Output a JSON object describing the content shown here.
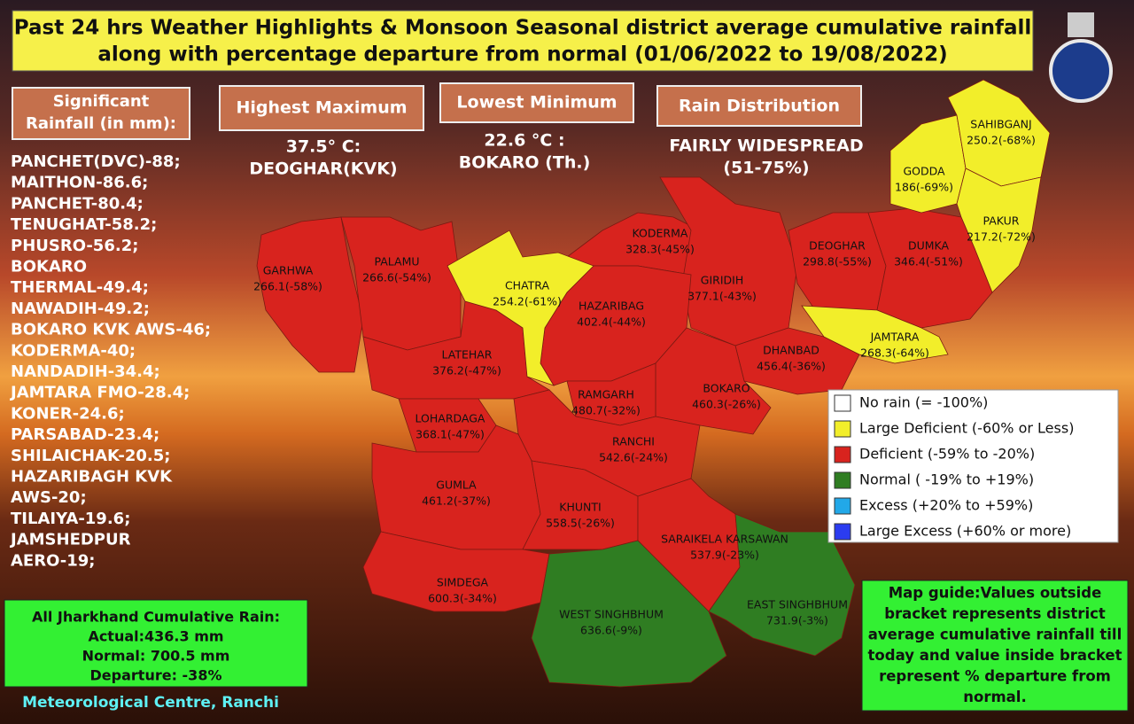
{
  "header": {
    "title_lines": [
      "Past 24 hrs Weather Highlights & Monsoon Seasonal district average cumulative rainfall",
      "along with percentage departure from normal (01/06/2022 to 19/08/2022)"
    ]
  },
  "significant_rainfall": {
    "heading_lines": [
      "Significant",
      "Rainfall (in mm):"
    ],
    "lines": [
      "PANCHET(DVC)-88;",
      "MAITHON-86.6;",
      "PANCHET-80.4;",
      "TENUGHAT-58.2;",
      "PHUSRO-56.2;",
      "BOKARO",
      "THERMAL-49.4;",
      "NAWADIH-49.2;",
      "BOKARO KVK AWS-46;",
      "KODERMA-40;",
      "NANDADIH-34.4;",
      "JAMTARA FMO-28.4;",
      "KONER-24.6;",
      "PARSABAD-23.4;",
      "SHILAICHAK-20.5;",
      "HAZARIBAGH KVK",
      "AWS-20;",
      "TILAIYA-19.6;",
      "JAMSHEDPUR",
      "AERO-19;"
    ]
  },
  "highest_maximum": {
    "heading": "Highest Maximum",
    "lines": [
      "37.5° C:",
      "DEOGHAR(KVK)"
    ]
  },
  "lowest_minimum": {
    "heading": "Lowest Minimum",
    "lines": [
      "22.6 °C :",
      "BOKARO (Th.)"
    ]
  },
  "rain_distribution": {
    "heading": "Rain Distribution",
    "lines": [
      "FAIRLY WIDESPREAD",
      "(51-75%)"
    ]
  },
  "legend": {
    "items": [
      {
        "label": "No rain (= -100%)",
        "color": "#ffffff"
      },
      {
        "label": "Large Deficient (-60% or Less)",
        "color": "#f2ee2a"
      },
      {
        "label": "Deficient (-59% to -20%)",
        "color": "#d8231e"
      },
      {
        "label": "Normal ( -19% to +19%)",
        "color": "#2f7d22"
      },
      {
        "label": "Excess (+20% to +59%)",
        "color": "#22a8e8"
      },
      {
        "label": "Large Excess (+60% or more)",
        "color": "#2b3cf0"
      }
    ]
  },
  "districts": [
    {
      "name": "GARHWA",
      "rainfall": "266.1(-58%)",
      "color": "#d8231e"
    },
    {
      "name": "PALAMU",
      "rainfall": "266.6(-54%)",
      "color": "#d8231e"
    },
    {
      "name": "LATEHAR",
      "rainfall": "376.2(-47%)",
      "color": "#d8231e"
    },
    {
      "name": "KODERMA",
      "rainfall": "328.3(-45%)",
      "color": "#d8231e"
    },
    {
      "name": "GIRIDIH",
      "rainfall": "377.1(-43%)",
      "color": "#d8231e"
    },
    {
      "name": "HAZARIBAG",
      "rainfall": "402.4(-44%)",
      "color": "#d8231e"
    },
    {
      "name": "DEOGHAR",
      "rainfall": "298.8(-55%)",
      "color": "#d8231e"
    },
    {
      "name": "DUMKA",
      "rainfall": "346.4(-51%)",
      "color": "#d8231e"
    },
    {
      "name": "DHANBAD",
      "rainfall": "456.4(-36%)",
      "color": "#d8231e"
    },
    {
      "name": "BOKARO",
      "rainfall": "460.3(-26%)",
      "color": "#d8231e"
    },
    {
      "name": "RAMGARH",
      "rainfall": "480.7(-32%)",
      "color": "#d8231e"
    },
    {
      "name": "LOHARDAGA",
      "rainfall": "368.1(-47%)",
      "color": "#d8231e"
    },
    {
      "name": "RANCHI",
      "rainfall": "542.6(-24%)",
      "color": "#d8231e"
    },
    {
      "name": "GUMLA",
      "rainfall": "461.2(-37%)",
      "color": "#d8231e"
    },
    {
      "name": "KHUNTI",
      "rainfall": "558.5(-26%)",
      "color": "#d8231e"
    },
    {
      "name": "SIMDEGA",
      "rainfall": "600.3(-34%)",
      "color": "#d8231e"
    },
    {
      "name": "SARAIKELA KARSAWAN",
      "rainfall": "537.9(-23%)",
      "color": "#d8231e"
    },
    {
      "name": "CHATRA",
      "rainfall": "254.2(-61%)",
      "color": "#f2ee2a"
    },
    {
      "name": "GODDA",
      "rainfall": "186(-69%)",
      "color": "#f2ee2a"
    },
    {
      "name": "SAHIBGANJ",
      "rainfall": "250.2(-68%)",
      "color": "#f2ee2a"
    },
    {
      "name": "PAKUR",
      "rainfall": "217.2(-72%)",
      "color": "#f2ee2a"
    },
    {
      "name": "JAMTARA",
      "rainfall": "268.3(-64%)",
      "color": "#f2ee2a"
    },
    {
      "name": "WEST SINGHBHUM",
      "rainfall": "636.6(-9%)",
      "color": "#2f7d22"
    },
    {
      "name": "EAST SINGHBHUM",
      "rainfall": "731.9(-3%)",
      "color": "#2f7d22"
    }
  ],
  "cumulative": {
    "lines": [
      "All Jharkhand Cumulative Rain:",
      "Actual:436.3 mm",
      "Normal: 700.5 mm",
      "Departure: -38%"
    ]
  },
  "map_guide": {
    "lines": [
      "Map guide:Values outside",
      "bracket represents district",
      "average cumulative rainfall till",
      "today and value inside bracket",
      "represent % departure from",
      "normal."
    ]
  },
  "footer": {
    "text": "Meteorological Centre, Ranchi"
  }
}
